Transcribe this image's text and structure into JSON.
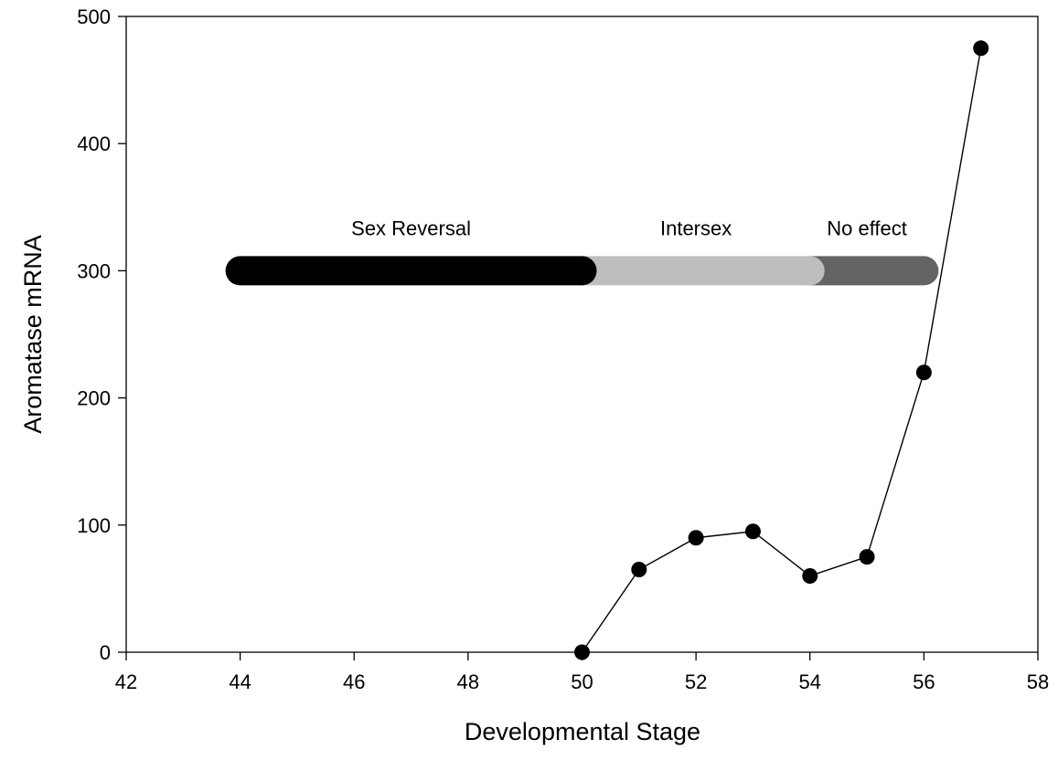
{
  "chart_data": {
    "type": "line",
    "title": "",
    "xlabel": "Developmental Stage",
    "ylabel": "Aromatase mRNA",
    "xlim": [
      42,
      58
    ],
    "ylim": [
      0,
      500
    ],
    "xticks": [
      42,
      44,
      46,
      48,
      50,
      52,
      54,
      56,
      58
    ],
    "yticks": [
      0,
      100,
      200,
      300,
      400,
      500
    ],
    "grid": false,
    "series": [
      {
        "x": [
          50,
          51,
          52,
          53,
          54,
          55,
          56,
          57
        ],
        "y": [
          0,
          65,
          90,
          95,
          60,
          75,
          220,
          475
        ],
        "color": "#000000",
        "marker": "circle"
      }
    ],
    "bands": [
      {
        "label": "Sex Reversal",
        "x_start": 44,
        "x_end": 50,
        "y": 300,
        "color": "#000000"
      },
      {
        "label": "Intersex",
        "x_start": 50,
        "x_end": 54,
        "y": 300,
        "color": "#bebebe"
      },
      {
        "label": "No effect",
        "x_start": 54,
        "x_end": 56,
        "y": 300,
        "color": "#646464"
      }
    ]
  }
}
